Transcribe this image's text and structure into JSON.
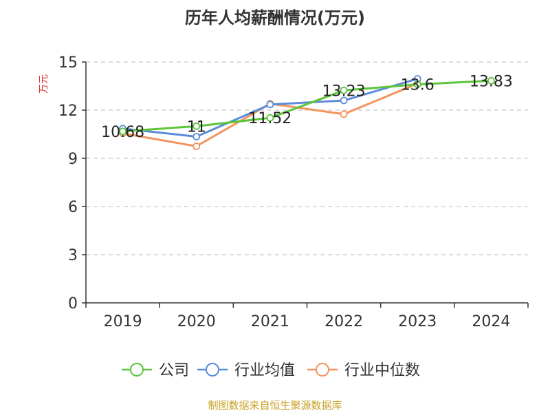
{
  "chart_data": {
    "type": "line",
    "title": "历年人均薪酬情况(万元)",
    "ylabel": "万元",
    "categories": [
      "2019",
      "2020",
      "2021",
      "2022",
      "2023",
      "2024"
    ],
    "ylim": [
      0,
      15
    ],
    "yticks": [
      0,
      3,
      6,
      9,
      12,
      15
    ],
    "grid": true,
    "legend_position": "bottom",
    "series": [
      {
        "name": "公司",
        "color": "#5cc53a",
        "values": [
          10.68,
          11,
          11.52,
          13.23,
          13.6,
          13.83
        ],
        "labels": [
          "10.68",
          "11",
          "11.52",
          "13.23",
          "13.6",
          "13.83"
        ]
      },
      {
        "name": "行业均值",
        "color": "#5b8bd9",
        "values": [
          10.85,
          10.35,
          12.35,
          12.6,
          13.95,
          null
        ]
      },
      {
        "name": "行业中位数",
        "color": "#f4935e",
        "values": [
          10.55,
          9.75,
          12.4,
          11.75,
          13.65,
          null
        ]
      }
    ]
  },
  "colors": {
    "unit_label": "#e03131",
    "source_label": "#c9a227",
    "axis": "#333333",
    "grid": "#bbbbbb"
  },
  "footer": {
    "source": "制图数据来自恒生聚源数据库"
  }
}
